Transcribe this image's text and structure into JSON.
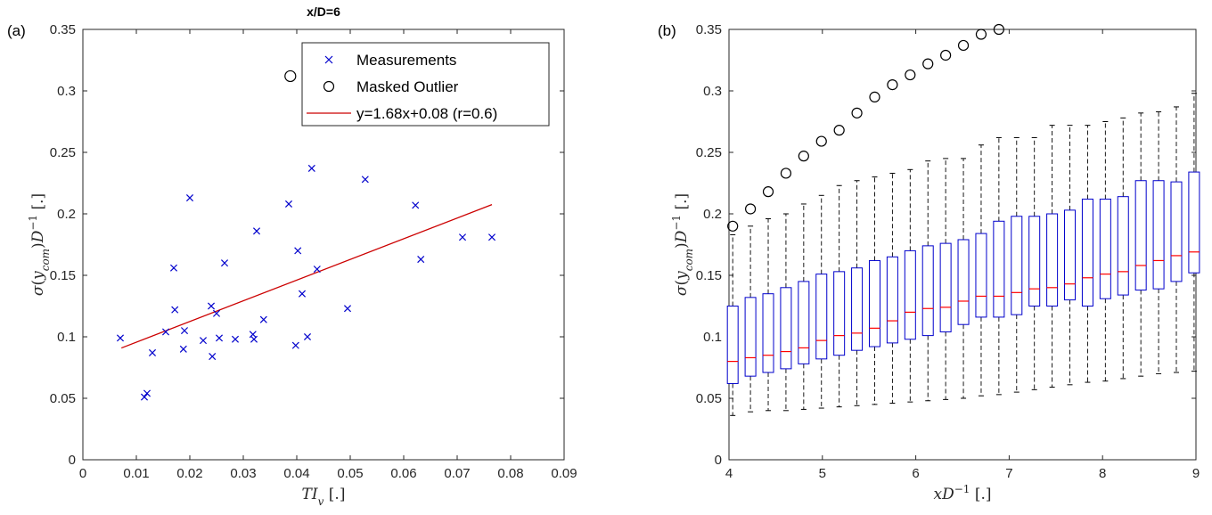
{
  "chart_data": [
    {
      "panel": "(a)",
      "type": "scatter",
      "title": "x/D=6",
      "xlabel": "TI_v [.]",
      "ylabel": "σ(y_com)D^-1 [.]",
      "xlim": [
        0,
        0.09
      ],
      "ylim": [
        0,
        0.35
      ],
      "xticks": [
        "0",
        "0.01",
        "0.02",
        "0.03",
        "0.04",
        "0.05",
        "0.06",
        "0.07",
        "0.08",
        "0.09"
      ],
      "yticks": [
        "0",
        "0.05",
        "0.1",
        "0.15",
        "0.2",
        "0.25",
        "0.3",
        "0.35"
      ],
      "legend": {
        "position": "top-right",
        "entries": [
          "Measurements",
          "Masked Outlier",
          "y=1.68x+0.08 (r=0.6)"
        ]
      },
      "series": [
        {
          "name": "Measurements",
          "marker": "x",
          "color": "#0000cc",
          "points": [
            [
              0.007,
              0.099
            ],
            [
              0.0115,
              0.051
            ],
            [
              0.012,
              0.054
            ],
            [
              0.013,
              0.087
            ],
            [
              0.0155,
              0.104
            ],
            [
              0.017,
              0.156
            ],
            [
              0.0172,
              0.122
            ],
            [
              0.0188,
              0.09
            ],
            [
              0.019,
              0.105
            ],
            [
              0.02,
              0.213
            ],
            [
              0.0225,
              0.097
            ],
            [
              0.024,
              0.125
            ],
            [
              0.0242,
              0.084
            ],
            [
              0.025,
              0.119
            ],
            [
              0.0255,
              0.099
            ],
            [
              0.0265,
              0.16
            ],
            [
              0.0285,
              0.098
            ],
            [
              0.0318,
              0.102
            ],
            [
              0.032,
              0.098
            ],
            [
              0.0325,
              0.186
            ],
            [
              0.0338,
              0.114
            ],
            [
              0.0385,
              0.208
            ],
            [
              0.0398,
              0.093
            ],
            [
              0.0402,
              0.17
            ],
            [
              0.041,
              0.135
            ],
            [
              0.042,
              0.1
            ],
            [
              0.0428,
              0.237
            ],
            [
              0.0438,
              0.155
            ],
            [
              0.0495,
              0.123
            ],
            [
              0.0528,
              0.228
            ],
            [
              0.0622,
              0.207
            ],
            [
              0.0632,
              0.163
            ],
            [
              0.071,
              0.181
            ],
            [
              0.0765,
              0.181
            ]
          ]
        },
        {
          "name": "Masked Outlier",
          "marker": "circle",
          "color": "#000000",
          "points": [
            [
              0.0388,
              0.312
            ]
          ]
        },
        {
          "name": "y=1.68x+0.08 (r=0.6)",
          "type": "line",
          "color": "#cc0000",
          "points": [
            [
              0.0072,
              0.0909
            ],
            [
              0.0765,
              0.2075
            ]
          ]
        }
      ]
    },
    {
      "panel": "(b)",
      "type": "box",
      "xlabel": "xD^-1 [.]",
      "ylabel": "σ(y_com)D^-1 [.]",
      "xlim": [
        4,
        9
      ],
      "ylim": [
        0,
        0.35
      ],
      "xticks": [
        "4",
        "5",
        "6",
        "7",
        "8",
        "9"
      ],
      "yticks": [
        "0",
        "0.05",
        "0.1",
        "0.15",
        "0.2",
        "0.25",
        "0.3",
        "0.35"
      ],
      "boxes": [
        {
          "x": 4.04,
          "wlo": 0.036,
          "q1": 0.062,
          "med": 0.08,
          "q3": 0.125,
          "whi": 0.183
        },
        {
          "x": 4.23,
          "wlo": 0.039,
          "q1": 0.068,
          "med": 0.083,
          "q3": 0.132,
          "whi": 0.19
        },
        {
          "x": 4.42,
          "wlo": 0.04,
          "q1": 0.071,
          "med": 0.085,
          "q3": 0.135,
          "whi": 0.196
        },
        {
          "x": 4.61,
          "wlo": 0.04,
          "q1": 0.074,
          "med": 0.088,
          "q3": 0.14,
          "whi": 0.2
        },
        {
          "x": 4.8,
          "wlo": 0.041,
          "q1": 0.078,
          "med": 0.091,
          "q3": 0.145,
          "whi": 0.208
        },
        {
          "x": 4.99,
          "wlo": 0.042,
          "q1": 0.082,
          "med": 0.097,
          "q3": 0.151,
          "whi": 0.215
        },
        {
          "x": 5.18,
          "wlo": 0.043,
          "q1": 0.085,
          "med": 0.101,
          "q3": 0.153,
          "whi": 0.223
        },
        {
          "x": 5.37,
          "wlo": 0.044,
          "q1": 0.089,
          "med": 0.103,
          "q3": 0.156,
          "whi": 0.227
        },
        {
          "x": 5.56,
          "wlo": 0.045,
          "q1": 0.092,
          "med": 0.107,
          "q3": 0.162,
          "whi": 0.23
        },
        {
          "x": 5.75,
          "wlo": 0.046,
          "q1": 0.095,
          "med": 0.113,
          "q3": 0.165,
          "whi": 0.233
        },
        {
          "x": 5.94,
          "wlo": 0.047,
          "q1": 0.098,
          "med": 0.12,
          "q3": 0.17,
          "whi": 0.236
        },
        {
          "x": 6.13,
          "wlo": 0.048,
          "q1": 0.101,
          "med": 0.123,
          "q3": 0.174,
          "whi": 0.243
        },
        {
          "x": 6.32,
          "wlo": 0.049,
          "q1": 0.104,
          "med": 0.124,
          "q3": 0.176,
          "whi": 0.245
        },
        {
          "x": 6.51,
          "wlo": 0.05,
          "q1": 0.11,
          "med": 0.129,
          "q3": 0.179,
          "whi": 0.245
        },
        {
          "x": 6.7,
          "wlo": 0.052,
          "q1": 0.116,
          "med": 0.133,
          "q3": 0.184,
          "whi": 0.256
        },
        {
          "x": 6.89,
          "wlo": 0.053,
          "q1": 0.116,
          "med": 0.133,
          "q3": 0.194,
          "whi": 0.262
        },
        {
          "x": 7.08,
          "wlo": 0.055,
          "q1": 0.118,
          "med": 0.136,
          "q3": 0.198,
          "whi": 0.262
        },
        {
          "x": 7.27,
          "wlo": 0.057,
          "q1": 0.125,
          "med": 0.139,
          "q3": 0.198,
          "whi": 0.262
        },
        {
          "x": 7.46,
          "wlo": 0.059,
          "q1": 0.125,
          "med": 0.14,
          "q3": 0.2,
          "whi": 0.272
        },
        {
          "x": 7.65,
          "wlo": 0.061,
          "q1": 0.13,
          "med": 0.143,
          "q3": 0.203,
          "whi": 0.272
        },
        {
          "x": 7.84,
          "wlo": 0.063,
          "q1": 0.125,
          "med": 0.148,
          "q3": 0.212,
          "whi": 0.272
        },
        {
          "x": 8.03,
          "wlo": 0.064,
          "q1": 0.131,
          "med": 0.151,
          "q3": 0.212,
          "whi": 0.275
        },
        {
          "x": 8.22,
          "wlo": 0.066,
          "q1": 0.134,
          "med": 0.153,
          "q3": 0.214,
          "whi": 0.278
        },
        {
          "x": 8.41,
          "wlo": 0.068,
          "q1": 0.138,
          "med": 0.158,
          "q3": 0.227,
          "whi": 0.282
        },
        {
          "x": 8.6,
          "wlo": 0.07,
          "q1": 0.139,
          "med": 0.162,
          "q3": 0.227,
          "whi": 0.283
        },
        {
          "x": 8.79,
          "wlo": 0.071,
          "q1": 0.145,
          "med": 0.166,
          "q3": 0.226,
          "whi": 0.287
        },
        {
          "x": 8.98,
          "wlo": 0.072,
          "q1": 0.152,
          "med": 0.169,
          "q3": 0.234,
          "whi": 0.298
        }
      ],
      "outliers": [
        [
          4.04,
          0.19
        ],
        [
          4.23,
          0.204
        ],
        [
          4.42,
          0.218
        ],
        [
          4.61,
          0.233
        ],
        [
          4.8,
          0.247
        ],
        [
          4.99,
          0.259
        ],
        [
          5.18,
          0.268
        ],
        [
          5.37,
          0.282
        ],
        [
          5.56,
          0.295
        ],
        [
          5.75,
          0.305
        ],
        [
          5.94,
          0.313
        ],
        [
          6.13,
          0.322
        ],
        [
          6.32,
          0.329
        ],
        [
          6.51,
          0.337
        ],
        [
          6.7,
          0.346
        ],
        [
          6.89,
          0.35
        ]
      ],
      "colors": {
        "box": "#0000cc",
        "median": "#ff0000",
        "whisker": "#000000",
        "outlier": "#000000"
      }
    }
  ]
}
